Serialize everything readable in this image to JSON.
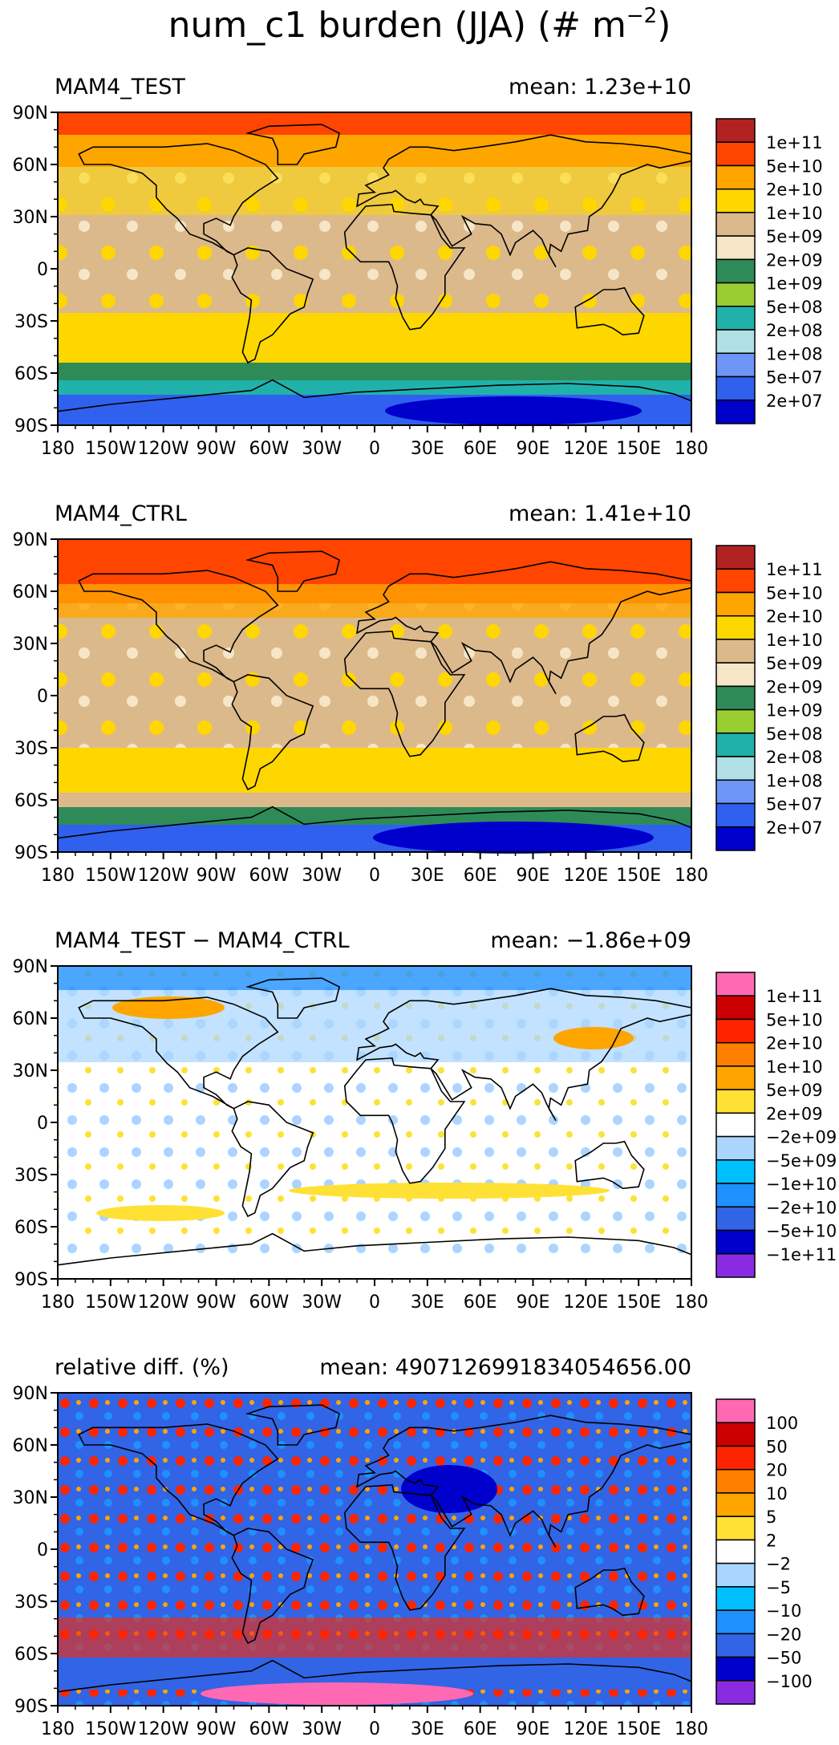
{
  "figure": {
    "title": "num_c1 burden (JJA) (# m",
    "title_exponent": "−2",
    "title_close": ")"
  },
  "lat_ticks": [
    "90N",
    "60N",
    "30N",
    "0",
    "30S",
    "60S",
    "90S"
  ],
  "lon_ticks": [
    "180",
    "150W",
    "120W",
    "90W",
    "60W",
    "30W",
    "0",
    "30E",
    "60E",
    "90E",
    "120E",
    "150E",
    "180"
  ],
  "colors": {
    "burden": [
      "#0000cd",
      "#3060ee",
      "#6e96f6",
      "#b0e0e6",
      "#20b2aa",
      "#9acd32",
      "#2e8b57",
      "#f5e6c8",
      "#dcb98b",
      "#ffd700",
      "#ffa500",
      "#ff4500",
      "#b22222"
    ],
    "diff": [
      "#8a2be2",
      "#0000cd",
      "#3264e6",
      "#1e90ff",
      "#00bfff",
      "#aad5ff",
      "#ffffff",
      "#ffe135",
      "#ffa500",
      "#ff7f00",
      "#ff2400",
      "#cc0000",
      "#ff69b4"
    ]
  },
  "panels": [
    {
      "id": "test",
      "name": "MAM4_TEST",
      "mean": "mean:  1.23e+10",
      "colorbar": "burden",
      "labels": [
        "1e+11",
        "5e+10",
        "2e+10",
        "1e+10",
        "5e+09",
        "2e+09",
        "1e+09",
        "5e+08",
        "2e+08",
        "1e+08",
        "5e+07",
        "2e+07"
      ]
    },
    {
      "id": "ctrl",
      "name": "MAM4_CTRL",
      "mean": "mean:  1.41e+10",
      "colorbar": "burden",
      "labels": [
        "1e+11",
        "5e+10",
        "2e+10",
        "1e+10",
        "5e+09",
        "2e+09",
        "1e+09",
        "5e+08",
        "2e+08",
        "1e+08",
        "5e+07",
        "2e+07"
      ]
    },
    {
      "id": "diff",
      "name": "MAM4_TEST − MAM4_CTRL",
      "mean": "mean:  −1.86e+09",
      "colorbar": "diff",
      "labels": [
        "1e+11",
        "5e+10",
        "2e+10",
        "1e+10",
        "5e+09",
        "2e+09",
        "−2e+09",
        "−5e+09",
        "−1e+10",
        "−2e+10",
        "−5e+10",
        "−1e+11"
      ]
    },
    {
      "id": "rel",
      "name": "relative diff. (%)",
      "mean": "mean:  4907126991834054656.00",
      "colorbar": "diff",
      "labels": [
        "100",
        "50",
        "20",
        "10",
        "5",
        "2",
        "−2",
        "−5",
        "−10",
        "−20",
        "−50",
        "−100"
      ]
    }
  ]
}
